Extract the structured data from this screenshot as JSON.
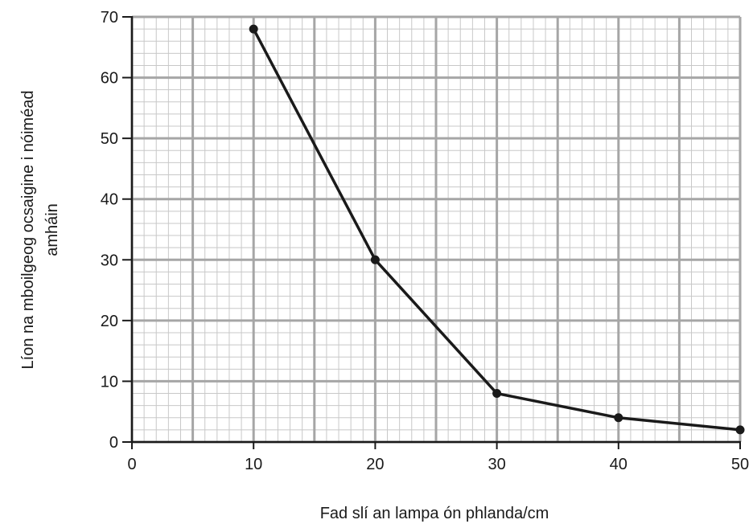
{
  "chart_data": {
    "type": "line",
    "xlabel": "Fad slí an lampa ón phlanda/cm",
    "ylabel_line1": "Líon na mboilgeog ocsaigine i nóiméad",
    "ylabel_line2": "amháin",
    "xlim": [
      0,
      50
    ],
    "ylim": [
      0,
      70
    ],
    "x_ticks": [
      0,
      10,
      20,
      30,
      40,
      50
    ],
    "y_ticks": [
      0,
      10,
      20,
      30,
      40,
      50,
      60,
      70
    ],
    "x_tick_labels": [
      "0",
      "10",
      "20",
      "30",
      "40",
      "50"
    ],
    "y_tick_labels": [
      "0",
      "10",
      "20",
      "30",
      "40",
      "50",
      "60",
      "70"
    ],
    "grid": true,
    "x": [
      10,
      20,
      30,
      40,
      50
    ],
    "y": [
      68,
      30,
      8,
      4,
      2
    ],
    "line_color": "#1a1a1a",
    "grid_major_color": "#a6a6a6",
    "grid_minor_color": "#c8c8c8"
  }
}
